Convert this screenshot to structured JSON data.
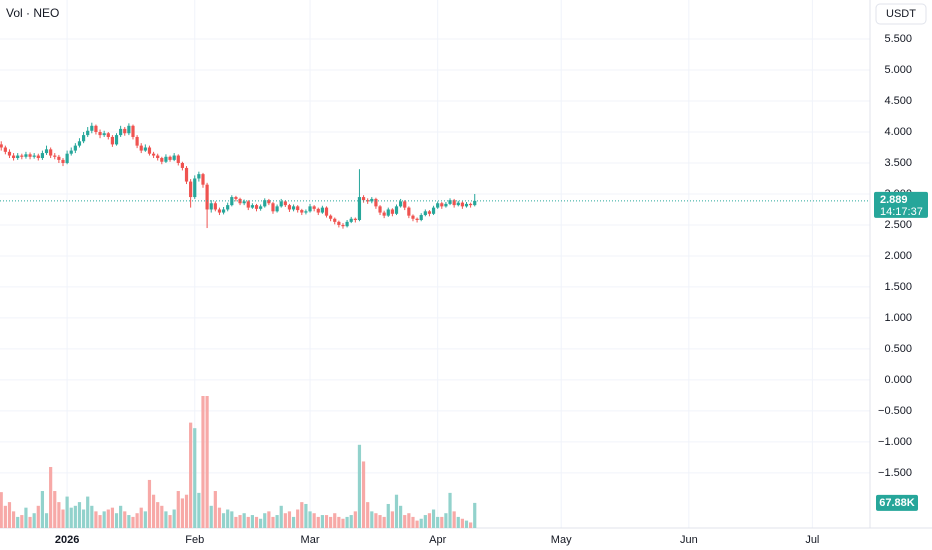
{
  "chart_data": {
    "type": "candlestick",
    "title": "Vol · NEO",
    "currency": "USDT",
    "countdown": "14:17:37",
    "volume_last_label": "67.88K",
    "up_color": "#26a69a",
    "down_color": "#ef5350",
    "volume_up_color": "#92d2cc",
    "volume_down_color": "#f7a9a7",
    "grid": true,
    "xlim": [
      -16.3,
      195
    ],
    "ylim": [
      -2.39,
      6.13
    ],
    "xticks": [
      {
        "value": 0,
        "label": "2026"
      },
      {
        "value": 31,
        "label": "Feb"
      },
      {
        "value": 59,
        "label": "Mar"
      },
      {
        "value": 90,
        "label": "Apr"
      },
      {
        "value": 120,
        "label": "May"
      },
      {
        "value": 151,
        "label": "Jun"
      },
      {
        "value": 181,
        "label": "Jul"
      }
    ],
    "yticks": [
      {
        "value": 5.5,
        "label": "5.500"
      },
      {
        "value": 5,
        "label": "5.000"
      },
      {
        "value": 4.5,
        "label": "4.500"
      },
      {
        "value": 4,
        "label": "4.000"
      },
      {
        "value": 3.5,
        "label": "3.500"
      },
      {
        "value": 3,
        "label": "3.000"
      },
      {
        "value": 2.5,
        "label": "2.500"
      },
      {
        "value": 2,
        "label": "2.000"
      },
      {
        "value": 1.5,
        "label": "1.500"
      },
      {
        "value": 1,
        "label": "1.000"
      },
      {
        "value": 0.5,
        "label": "0.500"
      },
      {
        "value": 0,
        "label": "0.000"
      },
      {
        "value": -0.5,
        "label": "−0.500"
      },
      {
        "value": -1,
        "label": "−1.000"
      },
      {
        "value": -1.5,
        "label": "−1.500"
      }
    ],
    "x": [
      -16,
      -15,
      -14,
      -13,
      -12,
      -11,
      -10,
      -9,
      -8,
      -7,
      -6,
      -5,
      -4,
      -3,
      -2,
      -1,
      0,
      1,
      2,
      3,
      4,
      5,
      6,
      7,
      8,
      9,
      10,
      11,
      12,
      13,
      14,
      15,
      16,
      17,
      18,
      19,
      20,
      21,
      22,
      23,
      24,
      25,
      26,
      27,
      28,
      29,
      30,
      31,
      32,
      33,
      34,
      35,
      36,
      37,
      38,
      39,
      40,
      41,
      42,
      43,
      44,
      45,
      46,
      47,
      48,
      49,
      50,
      51,
      52,
      53,
      54,
      55,
      56,
      57,
      58,
      59,
      60,
      61,
      62,
      63,
      64,
      65,
      66,
      67,
      68,
      69,
      70,
      71,
      72,
      73,
      74,
      75,
      76,
      77,
      78,
      79,
      80,
      81,
      82,
      83,
      84,
      85,
      86,
      87,
      88,
      89,
      90,
      91,
      92,
      93,
      94,
      95,
      96,
      97,
      98,
      99
    ],
    "ohlc": [
      [
        3.8,
        3.85,
        3.7,
        3.75
      ],
      [
        3.75,
        3.78,
        3.64,
        3.68
      ],
      [
        3.68,
        3.72,
        3.58,
        3.62
      ],
      [
        3.62,
        3.66,
        3.54,
        3.58
      ],
      [
        3.58,
        3.66,
        3.55,
        3.62
      ],
      [
        3.62,
        3.65,
        3.56,
        3.6
      ],
      [
        3.6,
        3.68,
        3.57,
        3.64
      ],
      [
        3.64,
        3.67,
        3.56,
        3.6
      ],
      [
        3.6,
        3.66,
        3.57,
        3.62
      ],
      [
        3.62,
        3.65,
        3.54,
        3.58
      ],
      [
        3.58,
        3.7,
        3.55,
        3.66
      ],
      [
        3.66,
        3.78,
        3.63,
        3.72
      ],
      [
        3.72,
        3.75,
        3.58,
        3.62
      ],
      [
        3.62,
        3.66,
        3.56,
        3.6
      ],
      [
        3.6,
        3.63,
        3.5,
        3.55
      ],
      [
        3.55,
        3.58,
        3.45,
        3.5
      ],
      [
        3.5,
        3.7,
        3.48,
        3.65
      ],
      [
        3.65,
        3.75,
        3.62,
        3.7
      ],
      [
        3.7,
        3.82,
        3.66,
        3.78
      ],
      [
        3.78,
        3.9,
        3.75,
        3.85
      ],
      [
        3.85,
        4.0,
        3.82,
        3.95
      ],
      [
        3.95,
        4.08,
        3.92,
        4.02
      ],
      [
        4.02,
        4.15,
        3.98,
        4.1
      ],
      [
        4.1,
        4.12,
        3.96,
        4.0
      ],
      [
        4.0,
        4.04,
        3.9,
        3.95
      ],
      [
        3.95,
        4.02,
        3.92,
        3.98
      ],
      [
        3.98,
        4.0,
        3.88,
        3.92
      ],
      [
        3.92,
        3.95,
        3.76,
        3.8
      ],
      [
        3.8,
        3.98,
        3.78,
        3.95
      ],
      [
        3.95,
        4.1,
        3.92,
        4.05
      ],
      [
        4.05,
        4.08,
        3.94,
        3.98
      ],
      [
        3.98,
        4.14,
        3.95,
        4.1
      ],
      [
        4.1,
        4.12,
        3.88,
        3.92
      ],
      [
        3.92,
        3.95,
        3.74,
        3.78
      ],
      [
        3.78,
        3.82,
        3.66,
        3.7
      ],
      [
        3.7,
        3.8,
        3.68,
        3.75
      ],
      [
        3.75,
        3.78,
        3.62,
        3.65
      ],
      [
        3.65,
        3.68,
        3.58,
        3.62
      ],
      [
        3.62,
        3.65,
        3.54,
        3.58
      ],
      [
        3.58,
        3.6,
        3.48,
        3.52
      ],
      [
        3.52,
        3.64,
        3.5,
        3.6
      ],
      [
        3.6,
        3.62,
        3.52,
        3.55
      ],
      [
        3.55,
        3.66,
        3.53,
        3.62
      ],
      [
        3.62,
        3.64,
        3.46,
        3.5
      ],
      [
        3.5,
        3.52,
        3.38,
        3.42
      ],
      [
        3.42,
        3.45,
        3.16,
        3.2
      ],
      [
        3.2,
        3.24,
        2.78,
        2.95
      ],
      [
        2.95,
        3.3,
        2.92,
        3.25
      ],
      [
        3.25,
        3.36,
        3.2,
        3.32
      ],
      [
        3.32,
        3.34,
        3.1,
        3.15
      ],
      [
        3.15,
        3.18,
        2.45,
        2.75
      ],
      [
        2.75,
        2.9,
        2.7,
        2.85
      ],
      [
        2.85,
        2.88,
        2.72,
        2.75
      ],
      [
        2.75,
        2.78,
        2.66,
        2.7
      ],
      [
        2.7,
        2.79,
        2.67,
        2.75
      ],
      [
        2.75,
        2.86,
        2.72,
        2.82
      ],
      [
        2.82,
        2.98,
        2.8,
        2.95
      ],
      [
        2.95,
        2.97,
        2.88,
        2.92
      ],
      [
        2.92,
        2.94,
        2.82,
        2.85
      ],
      [
        2.85,
        2.91,
        2.82,
        2.88
      ],
      [
        2.88,
        2.9,
        2.74,
        2.78
      ],
      [
        2.78,
        2.85,
        2.76,
        2.82
      ],
      [
        2.82,
        2.84,
        2.72,
        2.76
      ],
      [
        2.76,
        2.83,
        2.73,
        2.8
      ],
      [
        2.8,
        2.93,
        2.78,
        2.9
      ],
      [
        2.9,
        2.92,
        2.82,
        2.85
      ],
      [
        2.85,
        2.87,
        2.68,
        2.72
      ],
      [
        2.72,
        2.83,
        2.7,
        2.8
      ],
      [
        2.8,
        2.92,
        2.78,
        2.88
      ],
      [
        2.88,
        2.9,
        2.79,
        2.82
      ],
      [
        2.82,
        2.84,
        2.71,
        2.75
      ],
      [
        2.75,
        2.83,
        2.72,
        2.8
      ],
      [
        2.8,
        2.82,
        2.7,
        2.74
      ],
      [
        2.74,
        2.76,
        2.66,
        2.7
      ],
      [
        2.7,
        2.75,
        2.67,
        2.72
      ],
      [
        2.72,
        2.84,
        2.7,
        2.8
      ],
      [
        2.8,
        2.82,
        2.72,
        2.76
      ],
      [
        2.76,
        2.78,
        2.66,
        2.7
      ],
      [
        2.7,
        2.81,
        2.68,
        2.78
      ],
      [
        2.78,
        2.8,
        2.62,
        2.65
      ],
      [
        2.65,
        2.67,
        2.56,
        2.6
      ],
      [
        2.6,
        2.62,
        2.51,
        2.55
      ],
      [
        2.55,
        2.57,
        2.46,
        2.5
      ],
      [
        2.5,
        2.53,
        2.44,
        2.48
      ],
      [
        2.48,
        2.58,
        2.46,
        2.55
      ],
      [
        2.55,
        2.63,
        2.53,
        2.6
      ],
      [
        2.6,
        2.62,
        2.54,
        2.58
      ],
      [
        2.58,
        3.4,
        2.56,
        2.95
      ],
      [
        2.95,
        2.98,
        2.86,
        2.9
      ],
      [
        2.9,
        2.93,
        2.84,
        2.88
      ],
      [
        2.88,
        2.95,
        2.85,
        2.92
      ],
      [
        2.92,
        2.94,
        2.76,
        2.8
      ],
      [
        2.8,
        2.82,
        2.66,
        2.7
      ],
      [
        2.7,
        2.73,
        2.61,
        2.65
      ],
      [
        2.65,
        2.78,
        2.63,
        2.75
      ],
      [
        2.75,
        2.77,
        2.64,
        2.68
      ],
      [
        2.68,
        2.83,
        2.66,
        2.8
      ],
      [
        2.8,
        2.92,
        2.78,
        2.88
      ],
      [
        2.88,
        2.9,
        2.74,
        2.78
      ],
      [
        2.78,
        2.8,
        2.61,
        2.65
      ],
      [
        2.65,
        2.67,
        2.56,
        2.6
      ],
      [
        2.6,
        2.62,
        2.54,
        2.58
      ],
      [
        2.58,
        2.69,
        2.56,
        2.66
      ],
      [
        2.66,
        2.75,
        2.64,
        2.72
      ],
      [
        2.72,
        2.74,
        2.64,
        2.68
      ],
      [
        2.68,
        2.81,
        2.66,
        2.78
      ],
      [
        2.78,
        2.88,
        2.76,
        2.85
      ],
      [
        2.85,
        2.87,
        2.76,
        2.8
      ],
      [
        2.8,
        2.87,
        2.78,
        2.84
      ],
      [
        2.84,
        2.93,
        2.82,
        2.9
      ],
      [
        2.9,
        2.92,
        2.78,
        2.82
      ],
      [
        2.82,
        2.89,
        2.8,
        2.86
      ],
      [
        2.86,
        2.88,
        2.76,
        2.8
      ],
      [
        2.8,
        2.87,
        2.78,
        2.84
      ],
      [
        2.84,
        2.86,
        2.78,
        2.82
      ],
      [
        2.82,
        3.0,
        2.8,
        2.889
      ]
    ],
    "volume": [
      97,
      60,
      70,
      45,
      30,
      35,
      55,
      30,
      40,
      60,
      100,
      40,
      165,
      100,
      70,
      50,
      85,
      55,
      60,
      70,
      50,
      85,
      60,
      45,
      35,
      45,
      50,
      55,
      40,
      60,
      45,
      35,
      30,
      40,
      55,
      45,
      130,
      90,
      70,
      60,
      45,
      35,
      50,
      100,
      80,
      90,
      285,
      270,
      95,
      357,
      357,
      60,
      100,
      55,
      40,
      50,
      45,
      30,
      35,
      40,
      30,
      35,
      30,
      25,
      40,
      45,
      30,
      35,
      60,
      40,
      45,
      30,
      50,
      70,
      65,
      45,
      40,
      30,
      35,
      35,
      30,
      40,
      30,
      25,
      30,
      35,
      45,
      225,
      180,
      70,
      45,
      40,
      35,
      30,
      65,
      45,
      90,
      60,
      35,
      40,
      30,
      20,
      25,
      35,
      40,
      50,
      30,
      30,
      40,
      95,
      45,
      30,
      25,
      20,
      15,
      67.88
    ]
  }
}
